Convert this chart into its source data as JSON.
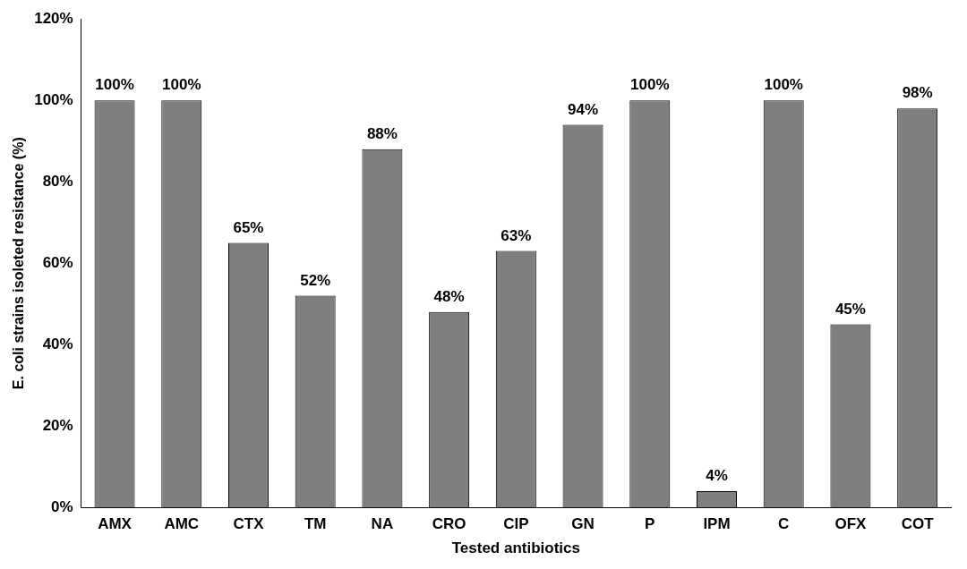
{
  "chart_data": {
    "type": "bar",
    "xlabel": "Tested antibiotics",
    "ylabel": "E. coli strains isoleted resistance (%)",
    "categories": [
      "AMX",
      "AMC",
      "CTX",
      "TM",
      "NA",
      "CRO",
      "CIP",
      "GN",
      "P",
      "IPM",
      "C",
      "OFX",
      "COT"
    ],
    "values": [
      100,
      100,
      65,
      52,
      88,
      48,
      63,
      94,
      100,
      4,
      100,
      45,
      98
    ],
    "value_labels": [
      "100%",
      "100%",
      "65%",
      "52%",
      "88%",
      "48%",
      "63%",
      "94%",
      "100%",
      "4%",
      "100%",
      "45%",
      "98%"
    ],
    "color": "#7f7f7f",
    "ylim": [
      0,
      120
    ],
    "yticks": [
      {
        "value": 0,
        "label": "0%"
      },
      {
        "value": 20,
        "label": "20%"
      },
      {
        "value": 40,
        "label": "40%"
      },
      {
        "value": 60,
        "label": "60%"
      },
      {
        "value": 80,
        "label": "80%"
      },
      {
        "value": 100,
        "label": "100%"
      },
      {
        "value": 120,
        "label": "120%"
      }
    ],
    "grid": false,
    "legend": false
  }
}
